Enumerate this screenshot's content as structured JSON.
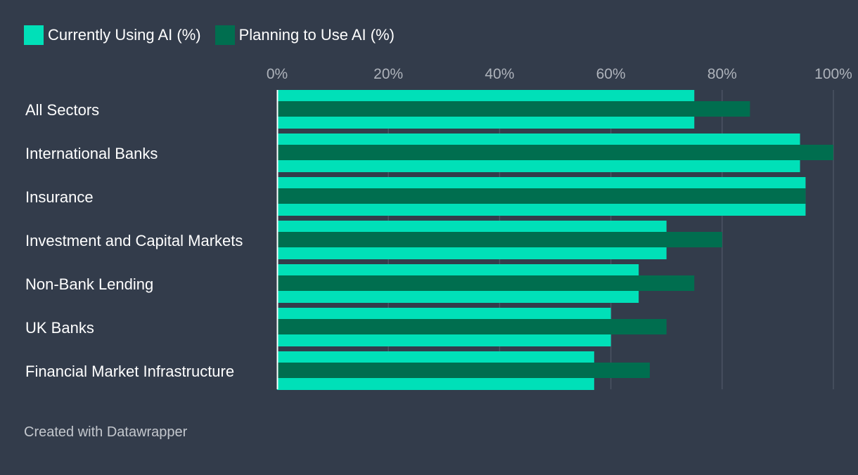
{
  "colors": {
    "background": "#333c4b",
    "current": "#00e0b8",
    "planning": "#006e4f",
    "grid": "#4b5363",
    "axis": "#ffffff"
  },
  "legend": {
    "current_label": "Currently Using AI (%)",
    "planning_label": "Planning to Use AI (%)"
  },
  "footer": {
    "credit": "Created with Datawrapper"
  },
  "chart_data": {
    "type": "bar",
    "orientation": "horizontal",
    "categories": [
      "All Sectors",
      "International Banks",
      "Insurance",
      "Investment and Capital Markets",
      "Non-Bank Lending",
      "UK Banks",
      "Financial Market Infrastructure"
    ],
    "series": [
      {
        "name": "Currently Using AI (%)",
        "values": [
          75,
          94,
          95,
          70,
          65,
          60,
          57
        ]
      },
      {
        "name": "Planning to Use AI (%)",
        "values": [
          85,
          100,
          95,
          80,
          75,
          70,
          67
        ]
      }
    ],
    "xlim": [
      0,
      100
    ],
    "xticks": [
      0,
      20,
      40,
      60,
      80,
      100
    ],
    "xtick_labels": [
      "0%",
      "20%",
      "40%",
      "60%",
      "80%",
      "100%"
    ],
    "grid": true,
    "legend_position": "top-left"
  }
}
